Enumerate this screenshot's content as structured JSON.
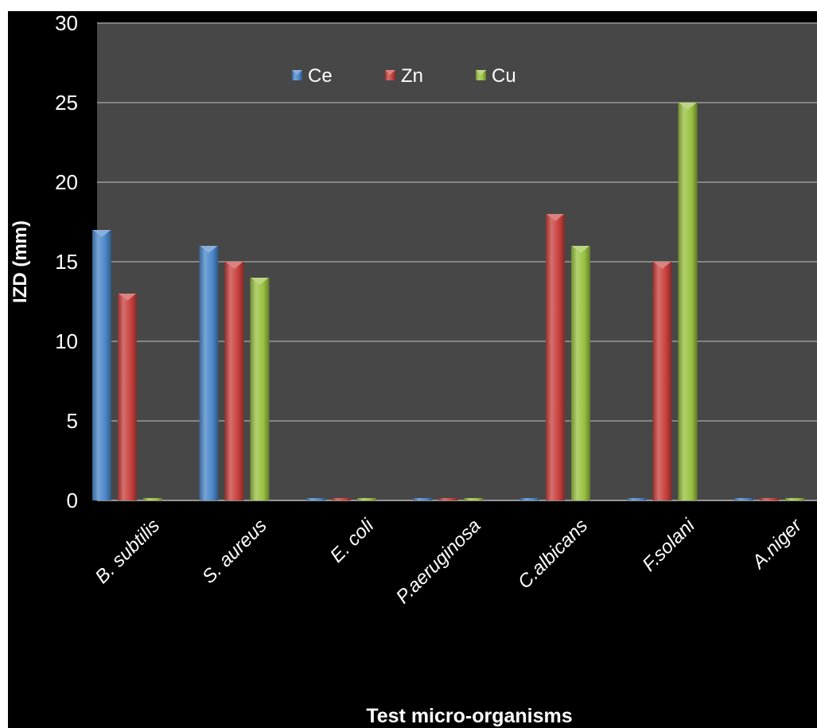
{
  "chart_data": {
    "type": "bar",
    "title": "",
    "xlabel": "Test micro-organisms",
    "ylabel": "IZD (mm)",
    "ylim": [
      0,
      30
    ],
    "yticks": [
      0,
      5,
      10,
      15,
      20,
      25,
      30
    ],
    "grid": true,
    "legend_position": "top",
    "categories": [
      "B. subtilis",
      "S. aureus",
      "E. coli",
      "P.aeruginosa",
      "C.albicans",
      "F.solani",
      "A.niger"
    ],
    "series": [
      {
        "name": "Ce",
        "color": "#4a86c8",
        "values": [
          17,
          16,
          0,
          0,
          0,
          0,
          0
        ]
      },
      {
        "name": "Zn",
        "color": "#c8403c",
        "values": [
          13,
          15,
          0,
          0,
          18,
          15,
          0
        ]
      },
      {
        "name": "Cu",
        "color": "#98c040",
        "values": [
          0,
          14,
          0,
          0,
          16,
          25,
          0
        ]
      }
    ]
  },
  "colors": {
    "background": "#000000",
    "plot_area": "#474747",
    "gridline": "#9a9a9a",
    "text": "#ffffff"
  }
}
